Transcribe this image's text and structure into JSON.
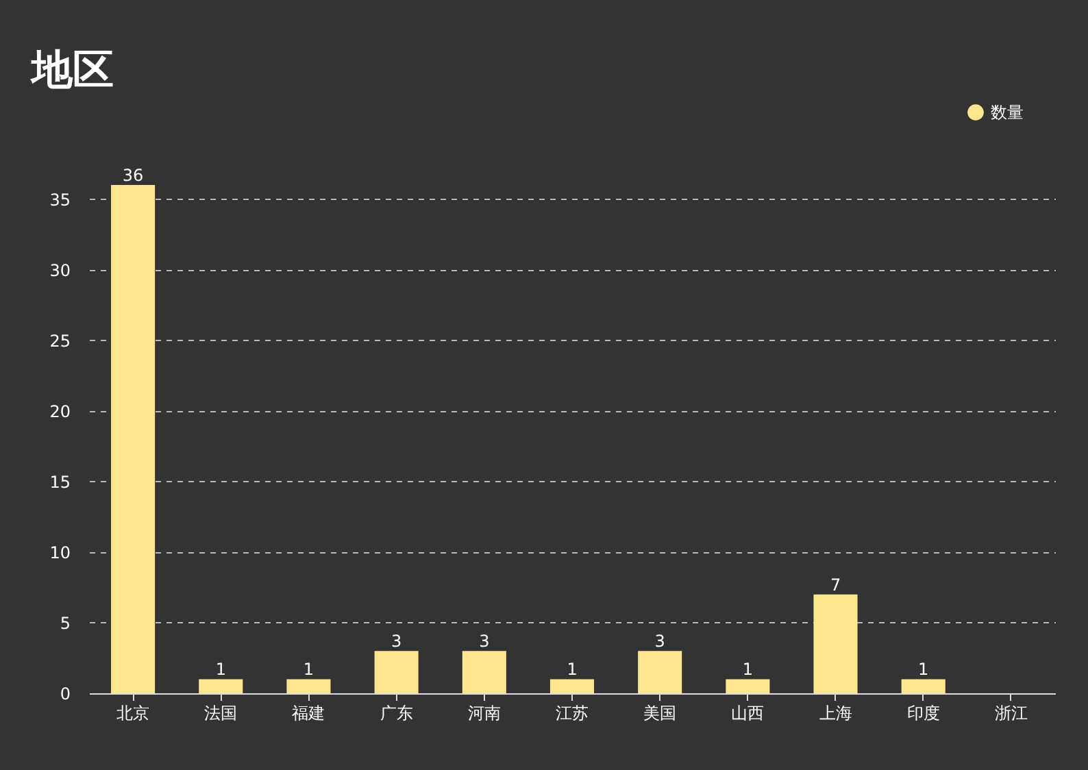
{
  "chart_data": {
    "type": "bar",
    "title": "地区",
    "categories": [
      "北京",
      "法国",
      "福建",
      "广东",
      "河南",
      "江苏",
      "美国",
      "山西",
      "上海",
      "印度",
      "浙江"
    ],
    "series": [
      {
        "name": "数量",
        "color": "#fee58f",
        "values": [
          36,
          1,
          1,
          3,
          3,
          1,
          3,
          1,
          7,
          1,
          null
        ]
      }
    ],
    "ylim": [
      0,
      36
    ],
    "yticks": [
      0,
      5,
      10,
      15,
      20,
      25,
      30,
      35
    ],
    "grid": "y",
    "legend": "top right",
    "data_labels": true
  }
}
